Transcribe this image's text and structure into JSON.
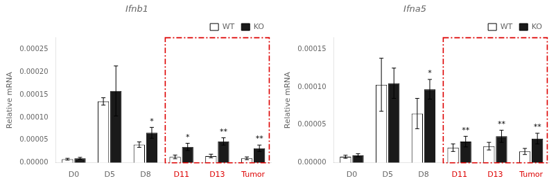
{
  "chart_data": [
    {
      "type": "bar",
      "title": "Ifnb1",
      "ylabel": "Relative mRNA",
      "categories": [
        "D0",
        "D5",
        "D8",
        "D11",
        "D13",
        "Tumor"
      ],
      "series": [
        {
          "name": "WT",
          "color": "#ffffff",
          "values": [
            8e-06,
            0.000135,
            4e-05,
            1.3e-05,
            1.5e-05,
            1e-05
          ],
          "errors": [
            2e-06,
            8e-06,
            6e-06,
            4e-06,
            4e-06,
            3e-06
          ]
        },
        {
          "name": "KO",
          "color": "#1a1a1a",
          "values": [
            1e-05,
            0.000158,
            6.6e-05,
            3.5e-05,
            4.7e-05,
            3.2e-05
          ],
          "errors": [
            2e-06,
            5.5e-05,
            1.2e-05,
            8e-06,
            8e-06,
            7e-06
          ],
          "annotations": [
            null,
            null,
            "*",
            "*",
            "**",
            "**"
          ]
        }
      ],
      "ylim": [
        0,
        0.000275
      ],
      "yticks": [
        {
          "value": 0,
          "label": "0.00000"
        },
        {
          "value": 5e-05,
          "label": "0.00005"
        },
        {
          "value": 0.0001,
          "label": "0.00010"
        },
        {
          "value": 0.00015,
          "label": "0.00015"
        },
        {
          "value": 0.0002,
          "label": "0.00020"
        },
        {
          "value": 0.00025,
          "label": "0.00025"
        }
      ],
      "highlight": {
        "from": "D11",
        "to": "Tumor",
        "color": "#dd0000",
        "line_style": "dashdot"
      },
      "grid": false,
      "legend": "upper right"
    },
    {
      "type": "bar",
      "title": "Ifna5",
      "ylabel": "Relative mRNA",
      "categories": [
        "D0",
        "D5",
        "D8",
        "D11",
        "D13",
        "Tumor"
      ],
      "series": [
        {
          "name": "WT",
          "color": "#ffffff",
          "values": [
            8e-06,
            0.000103,
            6.5e-05,
            2e-05,
            2.2e-05,
            1.5e-05
          ],
          "errors": [
            2e-06,
            3.5e-05,
            2e-05,
            5e-06,
            5e-06,
            4e-06
          ]
        },
        {
          "name": "KO",
          "color": "#1a1a1a",
          "values": [
            1e-05,
            0.000105,
            9.7e-05,
            2.8e-05,
            3.5e-05,
            3.2e-05
          ],
          "errors": [
            2e-06,
            2e-05,
            1.3e-05,
            7e-06,
            8e-06,
            7e-06
          ],
          "annotations": [
            null,
            null,
            "*",
            "**",
            "**",
            "**"
          ]
        }
      ],
      "ylim": [
        0,
        0.000165
      ],
      "yticks": [
        {
          "value": 0,
          "label": "0.00000"
        },
        {
          "value": 5e-05,
          "label": "0.00005"
        },
        {
          "value": 0.0001,
          "label": "0.00010"
        },
        {
          "value": 0.00015,
          "label": "0.00015"
        }
      ],
      "highlight": {
        "from": "D11",
        "to": "Tumor",
        "color": "#dd0000",
        "line_style": "dashdot"
      },
      "grid": false,
      "legend": "upper right"
    }
  ]
}
